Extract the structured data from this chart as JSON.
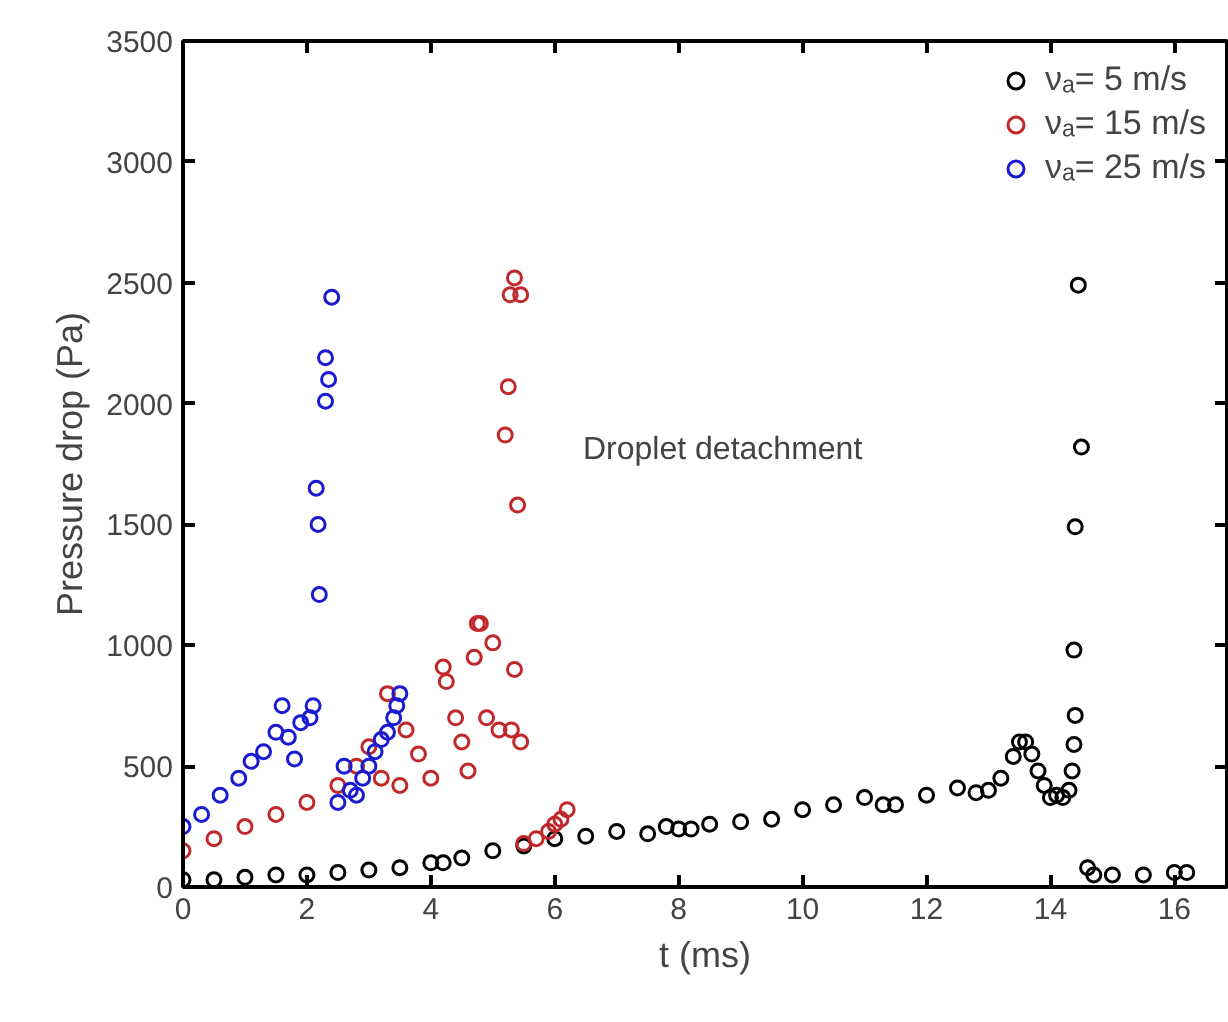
{
  "chart_data": {
    "type": "scatter",
    "xlabel": "t (ms)",
    "ylabel": "Pressure drop (Pa)",
    "xlim": [
      0,
      16.85
    ],
    "ylim": [
      0,
      3500
    ],
    "xticks": [
      0,
      2,
      4,
      6,
      8,
      10,
      12,
      14,
      16
    ],
    "yticks": [
      0,
      500,
      1000,
      1500,
      2000,
      2500,
      3000,
      3500
    ],
    "grid": false,
    "legend": "top right",
    "marker": "circle",
    "annotations": [
      "Droplet detachment"
    ],
    "series": [
      {
        "name": "νₐ= 5 m/s",
        "color": "#000000",
        "x": [
          0,
          0.5,
          1,
          1.5,
          2,
          2.5,
          3,
          3.5,
          4,
          4.2,
          4.5,
          5,
          5.5,
          6,
          6.5,
          7,
          7.5,
          7.8,
          8,
          8.2,
          8.5,
          9,
          9.5,
          10,
          10.5,
          11,
          11.3,
          11.5,
          12,
          12.5,
          12.8,
          13,
          13.2,
          13.4,
          13.5,
          13.6,
          13.7,
          13.8,
          13.9,
          14,
          14.1,
          14.2,
          14.3,
          14.35,
          14.38,
          14.4,
          14.38,
          14.4,
          14.5,
          14.45,
          14.6,
          14.7,
          15,
          15.5,
          16,
          16.2
        ],
        "values": [
          30,
          30,
          40,
          50,
          50,
          60,
          70,
          80,
          100,
          100,
          120,
          150,
          170,
          200,
          210,
          230,
          220,
          250,
          240,
          240,
          260,
          270,
          280,
          320,
          340,
          370,
          340,
          340,
          380,
          410,
          390,
          400,
          450,
          540,
          600,
          600,
          550,
          480,
          420,
          370,
          380,
          370,
          400,
          480,
          590,
          710,
          980,
          1490,
          1820,
          2490,
          80,
          50,
          50,
          50,
          60,
          60
        ]
      },
      {
        "name": "νₐ= 15 m/s",
        "color": "#c0282a",
        "x": [
          0,
          0.5,
          1,
          1.5,
          2,
          2.5,
          2.8,
          3,
          3.3,
          3.6,
          3.8,
          4,
          3.5,
          3.2,
          4.2,
          4.25,
          4.4,
          4.5,
          4.6,
          4.7,
          4.75,
          4.8,
          4.9,
          5,
          5.1,
          5.2,
          5.25,
          5.28,
          5.35,
          5.45,
          5.4,
          5.35,
          5.3,
          5.45,
          5.5,
          5.7,
          5.9,
          6,
          6.1,
          6.2
        ],
        "values": [
          150,
          200,
          250,
          300,
          350,
          420,
          500,
          580,
          800,
          650,
          550,
          450,
          420,
          450,
          910,
          850,
          700,
          600,
          480,
          950,
          1090,
          1090,
          700,
          1010,
          650,
          1870,
          2070,
          2450,
          2520,
          2450,
          1580,
          900,
          650,
          600,
          180,
          200,
          230,
          260,
          280,
          320
        ]
      },
      {
        "name": "νₐ= 25 m/s",
        "color": "#1a1ad0",
        "x": [
          0,
          0.3,
          0.6,
          0.9,
          1.1,
          1.3,
          1.5,
          1.6,
          1.7,
          1.8,
          1.9,
          2.05,
          2.1,
          2.2,
          2.18,
          2.15,
          2.3,
          2.35,
          2.3,
          2.4,
          2.5,
          2.6,
          2.7,
          2.8,
          2.9,
          3,
          3.1,
          3.2,
          3.3,
          3.4,
          3.45,
          3.5
        ],
        "values": [
          250,
          300,
          380,
          450,
          520,
          560,
          640,
          750,
          620,
          530,
          680,
          700,
          750,
          1210,
          1500,
          1650,
          2010,
          2100,
          2190,
          2440,
          350,
          500,
          400,
          380,
          450,
          500,
          560,
          610,
          640,
          700,
          750,
          800
        ]
      }
    ]
  }
}
